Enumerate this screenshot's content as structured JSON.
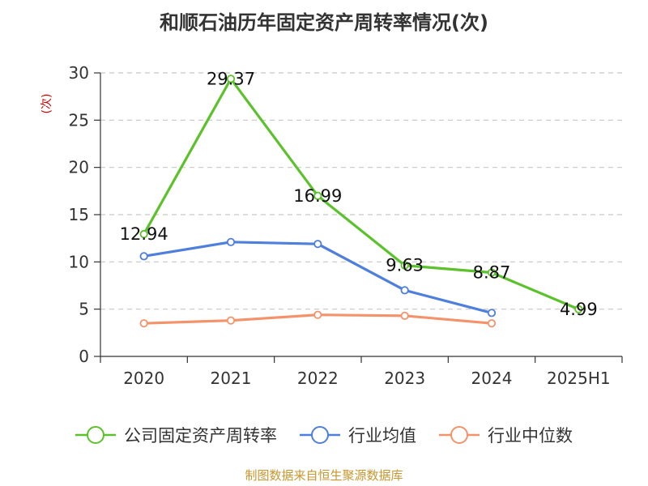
{
  "chart_data": {
    "type": "line",
    "title": "和顺石油历年固定资产周转率情况(次)",
    "ylabel": "(次)",
    "categories": [
      "2020",
      "2021",
      "2022",
      "2023",
      "2024",
      "2025H1"
    ],
    "yticks": [
      "0",
      "5",
      "10",
      "15",
      "20",
      "25",
      "30"
    ],
    "ylim": [
      0,
      30
    ],
    "grid": true,
    "legend_position": "bottom",
    "series": [
      {
        "name": "公司固定资产周转率",
        "color": "#5cc22b",
        "values": [
          12.94,
          29.37,
          16.99,
          9.63,
          8.87,
          4.99
        ],
        "labels": [
          "12.94",
          "29.37",
          "16.99",
          "9.63",
          "8.87",
          "4.99"
        ]
      },
      {
        "name": "行业均值",
        "color": "#4e7fdc",
        "values": [
          10.6,
          12.1,
          11.9,
          7.0,
          4.6,
          null
        ]
      },
      {
        "name": "行业中位数",
        "color": "#f4936a",
        "values": [
          3.5,
          3.8,
          4.4,
          4.3,
          3.5,
          null
        ]
      }
    ],
    "source": "制图数据来自恒生聚源数据库"
  }
}
